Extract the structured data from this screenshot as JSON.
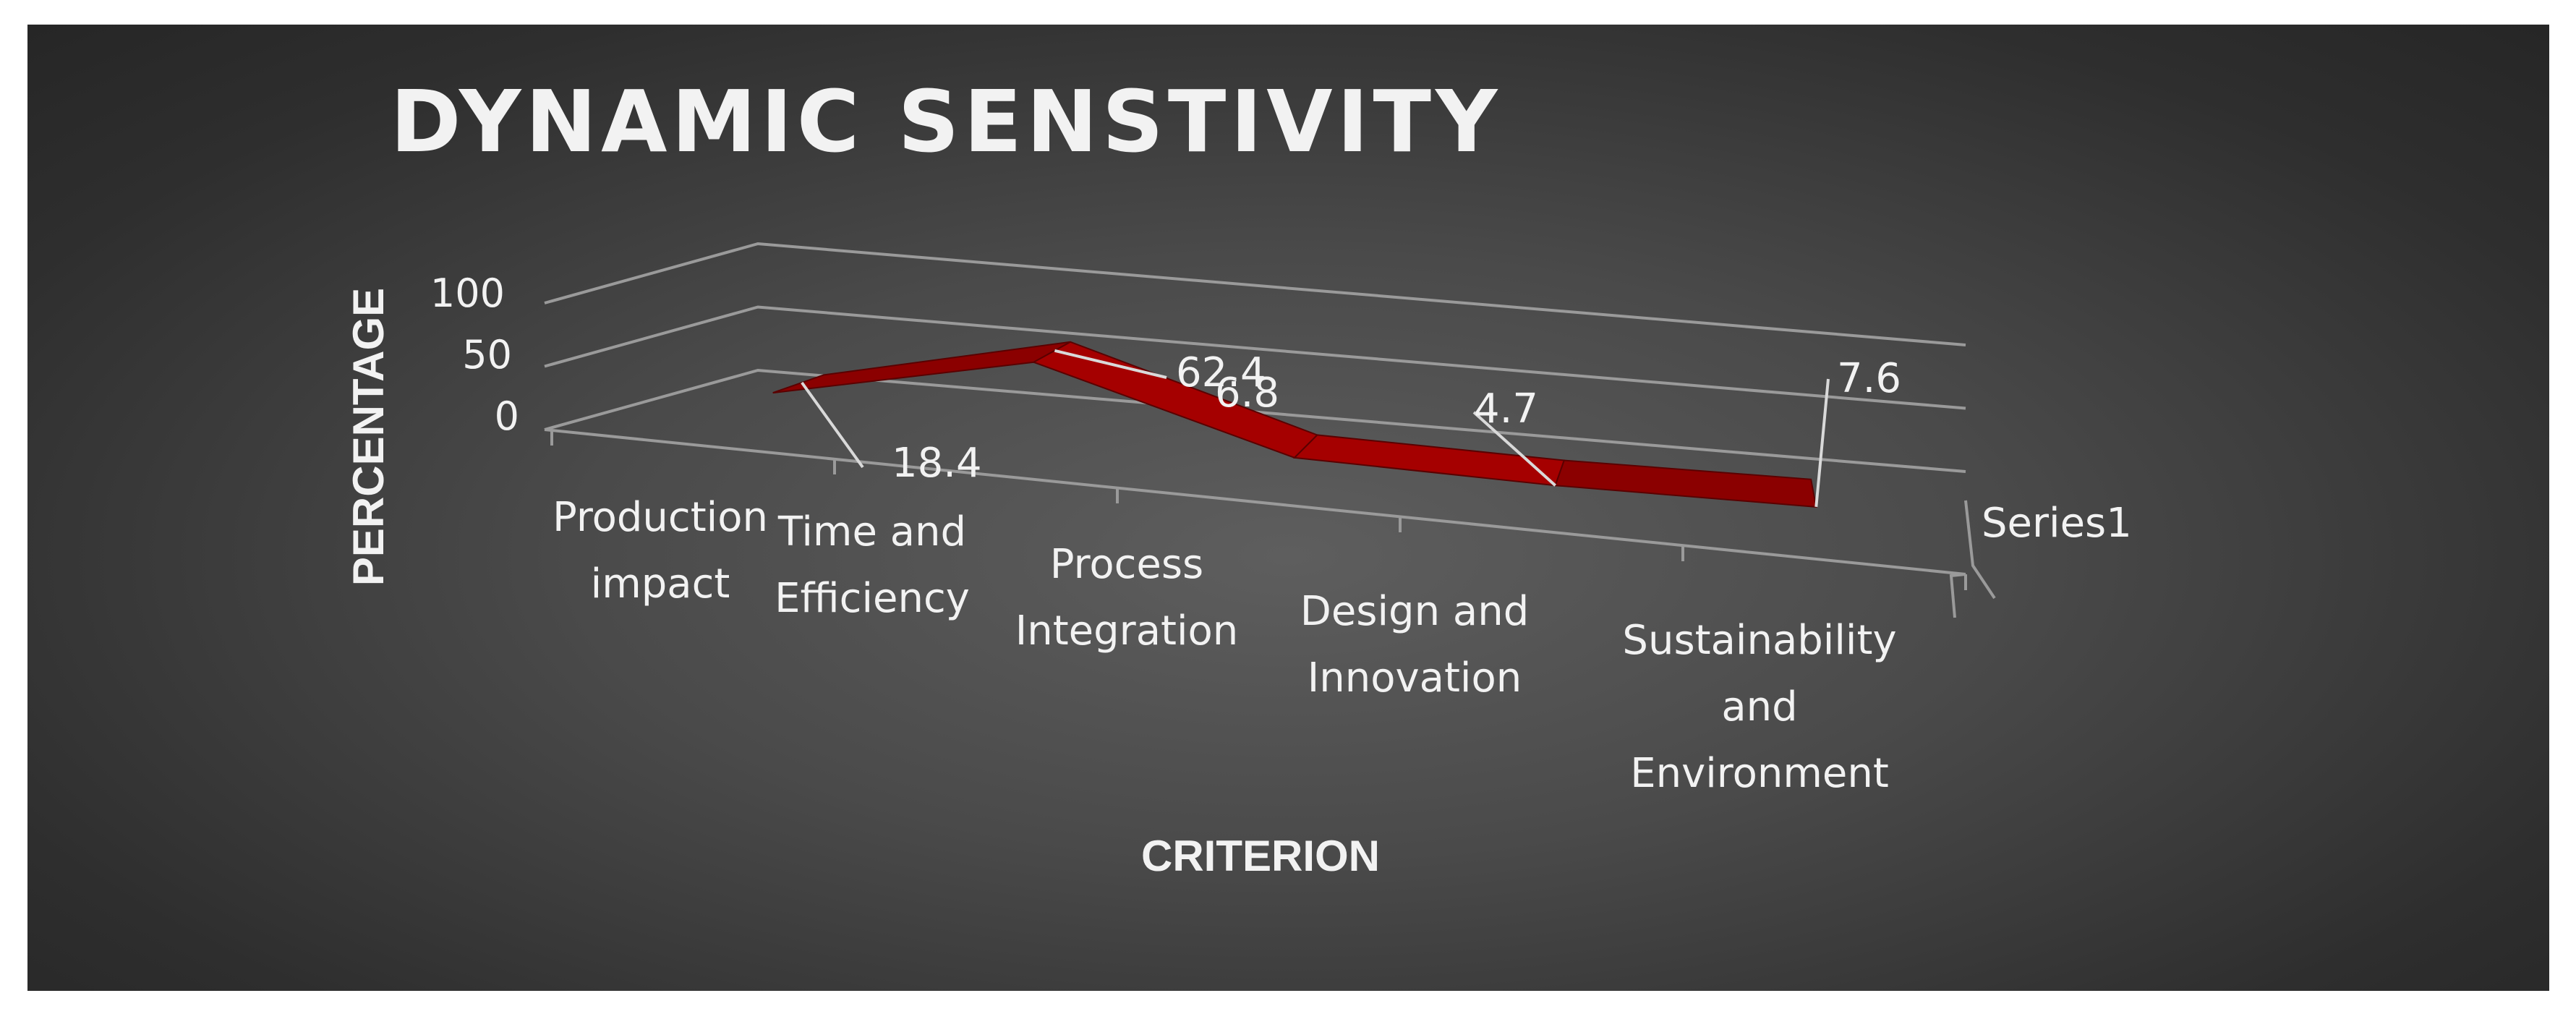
{
  "colors": {
    "series": "#8b0000",
    "series_top": "#a50000",
    "grid": "#9a9a9a",
    "leader": "#d9d9d9",
    "text": "#f2f2f2"
  },
  "chart_data": {
    "type": "line",
    "title": "DYNAMIC SENSTIVITY",
    "xlabel": "CRITERION",
    "ylabel": "PERCENTAGE",
    "ylim": [
      0,
      100
    ],
    "y_ticks": [
      "100",
      "50",
      "0"
    ],
    "grid": true,
    "three_d": true,
    "legend_position": "right",
    "categories": [
      "Production impact",
      "Time and Efficiency",
      "Process Integration",
      "Design and Innovation",
      "Sustainability and Environment"
    ],
    "series": [
      {
        "name": "Series1",
        "values": [
          18.4,
          62.4,
          6.8,
          4.7,
          7.6
        ],
        "labels": [
          "18.4",
          "62.4",
          "6.8",
          "4.7",
          "7.6"
        ]
      }
    ]
  }
}
